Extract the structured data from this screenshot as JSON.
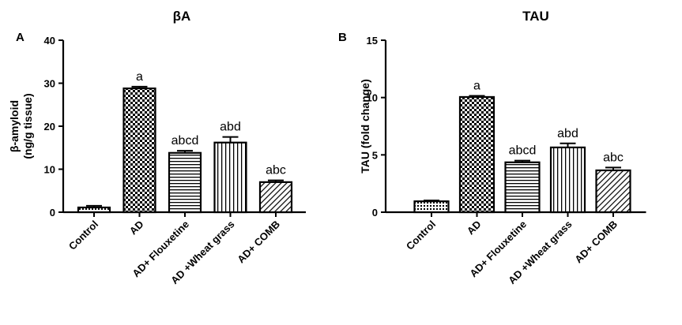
{
  "chart_data": [
    {
      "type": "bar",
      "panel": "A",
      "title": "βA",
      "ylabel_line1": "β-amyloid",
      "ylabel_line2": "(ng/g tissue)",
      "xlabel": "",
      "categories": [
        "Control",
        "AD",
        "AD+ Flouxetine",
        "AD +Wheat grass",
        "AD+ COMB"
      ],
      "values": [
        1.1,
        28.8,
        13.8,
        16.2,
        7.0
      ],
      "errors": [
        0.4,
        0.4,
        0.5,
        1.3,
        0.4
      ],
      "significance_labels": [
        "",
        "a",
        "abcd",
        "abd",
        "abc"
      ],
      "patterns": [
        "dots",
        "checker",
        "hlines",
        "vlines",
        "diag"
      ],
      "ylim": [
        0,
        40
      ],
      "yticks": [
        0,
        10,
        20,
        30,
        40
      ]
    },
    {
      "type": "bar",
      "panel": "B",
      "title": "TAU",
      "ylabel_line1": "TAU (fold change)",
      "ylabel_line2": "",
      "xlabel": "",
      "categories": [
        "Control",
        "AD",
        "AD+ Flouxetine",
        "AD +Wheat grass",
        "AD+ COMB"
      ],
      "values": [
        0.95,
        10.05,
        4.35,
        5.65,
        3.65
      ],
      "errors": [
        0.07,
        0.1,
        0.15,
        0.35,
        0.25
      ],
      "significance_labels": [
        "",
        "a",
        "abcd",
        "abd",
        "abc"
      ],
      "patterns": [
        "dots",
        "checker",
        "hlines",
        "vlines",
        "diag"
      ],
      "ylim": [
        0,
        15
      ],
      "yticks": [
        0,
        5,
        10,
        15
      ]
    }
  ]
}
